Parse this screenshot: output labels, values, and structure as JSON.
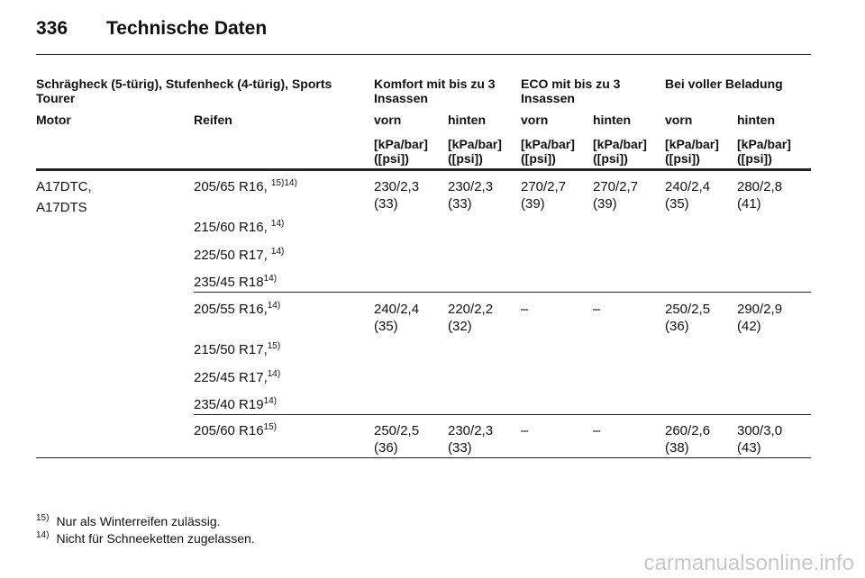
{
  "header": {
    "page": "336",
    "title": "Technische Daten"
  },
  "table": {
    "group_headers": [
      "Schrägheck (5-türig), Stufenheck (4-türig), Sports Tourer",
      "Komfort mit bis zu 3 Insassen",
      "ECO mit bis zu 3 Insassen",
      "Bei voller Beladung"
    ],
    "columns": [
      "Motor",
      "Reifen",
      "vorn",
      "hinten",
      "vorn",
      "hinten",
      "vorn",
      "hinten"
    ],
    "units": [
      "[kPa/bar] ([psi])",
      "[kPa/bar] ([psi])",
      "[kPa/bar] ([psi])",
      "[kPa/bar] ([psi])",
      "[kPa/bar] ([psi])",
      "[kPa/bar] ([psi])"
    ],
    "motors": [
      "A17DTC,",
      "A17DTS"
    ],
    "groups": [
      {
        "tires": [
          {
            "size": "205/65 R16, ",
            "note": "15)14)"
          },
          {
            "size": "215/60 R16, ",
            "note": "14)"
          },
          {
            "size": "225/50 R17, ",
            "note": "14)"
          },
          {
            "size": "235/45 R18",
            "note": "14)"
          }
        ],
        "pressures": [
          [
            "230/2,3",
            "(33)"
          ],
          [
            "230/2,3",
            "(33)"
          ],
          [
            "270/2,7",
            "(39)"
          ],
          [
            "270/2,7",
            "(39)"
          ],
          [
            "240/2,4",
            "(35)"
          ],
          [
            "280/2,8",
            "(41)"
          ]
        ]
      },
      {
        "tires": [
          {
            "size": "205/55 R16,",
            "note": "14)"
          },
          {
            "size": "215/50 R17,",
            "note": "15)"
          },
          {
            "size": "225/45 R17,",
            "note": "14)"
          },
          {
            "size": "235/40 R19",
            "note": "14)"
          }
        ],
        "pressures": [
          [
            "240/2,4",
            "(35)"
          ],
          [
            "220/2,2",
            "(32)"
          ],
          [
            "–"
          ],
          [
            "–"
          ],
          [
            "250/2,5",
            "(36)"
          ],
          [
            "290/2,9",
            "(42)"
          ]
        ]
      },
      {
        "tires": [
          {
            "size": "205/60 R16",
            "note": "15)"
          }
        ],
        "pressures": [
          [
            "250/2,5",
            "(36)"
          ],
          [
            "230/2,3",
            "(33)"
          ],
          [
            "–"
          ],
          [
            "–"
          ],
          [
            "260/2,6",
            "(38)"
          ],
          [
            "300/3,0",
            "(43)"
          ]
        ]
      }
    ]
  },
  "footnotes": [
    {
      "mark": "15)",
      "text": "Nur als Winterreifen zulässig."
    },
    {
      "mark": "14)",
      "text": "Nicht für Schneeketten zugelassen."
    }
  ],
  "watermark": "carmanualsonline.info"
}
